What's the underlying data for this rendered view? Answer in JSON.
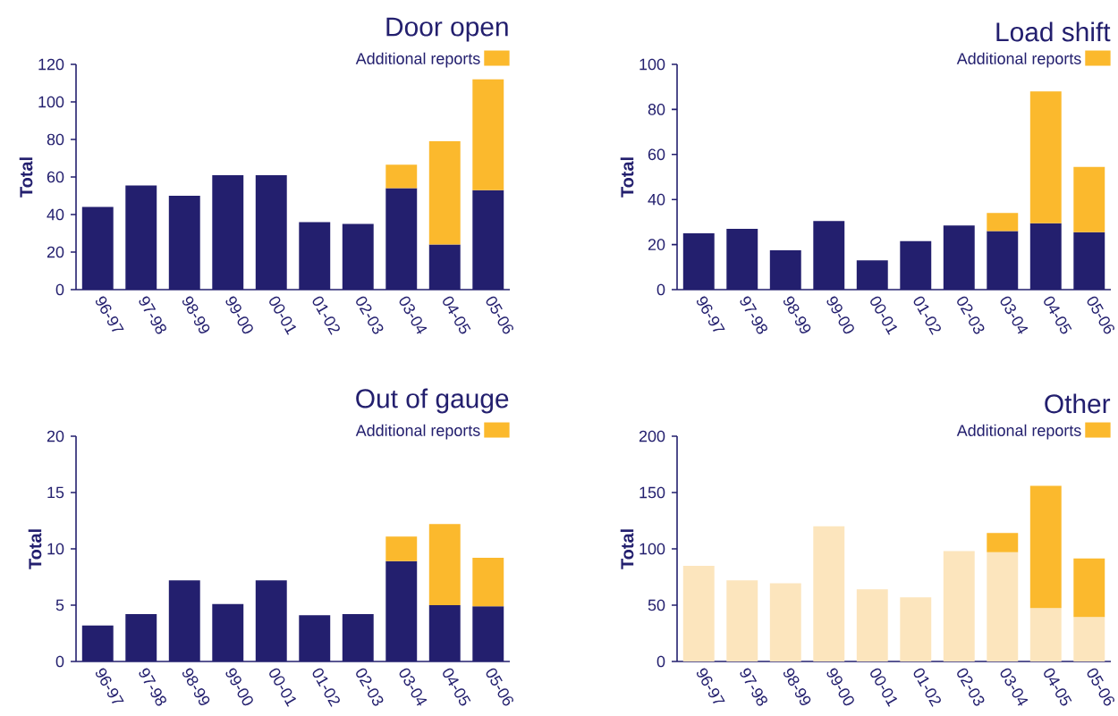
{
  "chart_data": [
    {
      "type": "bar",
      "title": "Door open",
      "ylabel": "Total",
      "stacked": true,
      "legend": "top right",
      "categories": [
        "96-97",
        "97-98",
        "98-99",
        "99-00",
        "00-01",
        "01-02",
        "02-03",
        "03-04",
        "04-05",
        "05-06"
      ],
      "series": [
        {
          "color": "#231f6e",
          "values": [
            44,
            55.5,
            50,
            61,
            61,
            36,
            35,
            54,
            24,
            53
          ]
        },
        {
          "name": "Additional reports",
          "color": "#fbb92d",
          "values": [
            null,
            null,
            null,
            null,
            null,
            null,
            null,
            12.5,
            55,
            59
          ]
        }
      ],
      "ylim": [
        0,
        120
      ],
      "yticks": [
        0,
        20,
        40,
        60,
        80,
        100,
        120
      ]
    },
    {
      "type": "bar",
      "title": "Load shift",
      "ylabel": "Total",
      "stacked": true,
      "legend": "top right",
      "categories": [
        "96-97",
        "97-98",
        "98-99",
        "99-00",
        "00-01",
        "01-02",
        "02-03",
        "03-04",
        "04-05",
        "05-06"
      ],
      "series": [
        {
          "color": "#231f6e",
          "values": [
            25,
            27,
            17.5,
            30.5,
            13,
            21.5,
            28.5,
            26,
            29.5,
            25.5
          ]
        },
        {
          "name": "Additional reports",
          "color": "#fbb92d",
          "values": [
            null,
            null,
            null,
            null,
            null,
            null,
            null,
            8,
            58.5,
            29
          ]
        }
      ],
      "ylim": [
        0,
        100
      ],
      "yticks": [
        0,
        20,
        40,
        60,
        80,
        100
      ]
    },
    {
      "type": "bar",
      "title": "Out of gauge",
      "ylabel": "Total",
      "stacked": true,
      "legend": "top right",
      "categories": [
        "96-97",
        "97-98",
        "98-99",
        "99-00",
        "00-01",
        "01-02",
        "02-03",
        "03-04",
        "04-05",
        "05-06"
      ],
      "series": [
        {
          "color": "#231f6e",
          "values": [
            3.2,
            4.2,
            7.2,
            5.1,
            7.2,
            4.1,
            4.2,
            8.9,
            5,
            4.9
          ]
        },
        {
          "name": "Additional reports",
          "color": "#fbb92d",
          "values": [
            null,
            null,
            null,
            null,
            null,
            null,
            null,
            2.2,
            7.2,
            4.3
          ]
        }
      ],
      "ylim": [
        0,
        20
      ],
      "yticks": [
        0,
        5,
        10,
        15,
        20
      ]
    },
    {
      "type": "bar",
      "title": "Other",
      "ylabel": "Total",
      "stacked": true,
      "legend": "top right",
      "categories": [
        "96-97",
        "97-98",
        "98-99",
        "99-00",
        "00-01",
        "01-02",
        "02-03",
        "03-04",
        "04-05",
        "05-06"
      ],
      "series": [
        {
          "color": "#fce5bd",
          "values": [
            85,
            72,
            69.5,
            120,
            64,
            57,
            98,
            97,
            47.5,
            39.5
          ]
        },
        {
          "name": "Additional reports",
          "color": "#fbb92d",
          "values": [
            null,
            null,
            null,
            null,
            null,
            null,
            null,
            17,
            108.5,
            52
          ]
        }
      ],
      "ylim": [
        0,
        200
      ],
      "yticks": [
        0,
        50,
        100,
        150,
        200
      ]
    }
  ]
}
